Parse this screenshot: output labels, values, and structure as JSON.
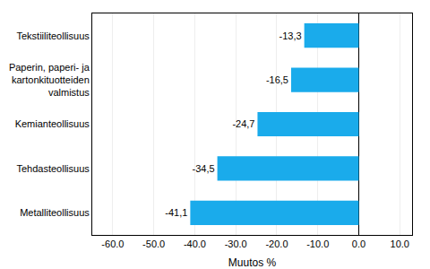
{
  "chart_data": {
    "type": "bar",
    "orientation": "horizontal",
    "categories": [
      "Metalliteollisuus",
      "Tehdasteollisuus",
      "Kemianteollisuus",
      "Paperin, paperi- ja kartonkituotteiden valmistus",
      "Tekstiiliteollisuus"
    ],
    "values": [
      -41.1,
      -34.5,
      -24.7,
      -16.5,
      -13.3
    ],
    "value_labels": [
      "-41,1",
      "-34,5",
      "-24,7",
      "-16,5",
      "-13,3"
    ],
    "data_labels": true,
    "color": "#1aabeb",
    "xlabel": "Muutos %",
    "xlim": [
      -65,
      13
    ],
    "xticks": [
      {
        "value": -60,
        "label": "-60.0"
      },
      {
        "value": -50,
        "label": "-50.0"
      },
      {
        "value": -40,
        "label": "-40.0"
      },
      {
        "value": -30,
        "label": "-30.0"
      },
      {
        "value": -20,
        "label": "-20.0"
      },
      {
        "value": -10,
        "label": "-10.0"
      },
      {
        "value": 0,
        "label": "0.0"
      },
      {
        "value": 10,
        "label": "10.0"
      }
    ],
    "grid": true
  }
}
